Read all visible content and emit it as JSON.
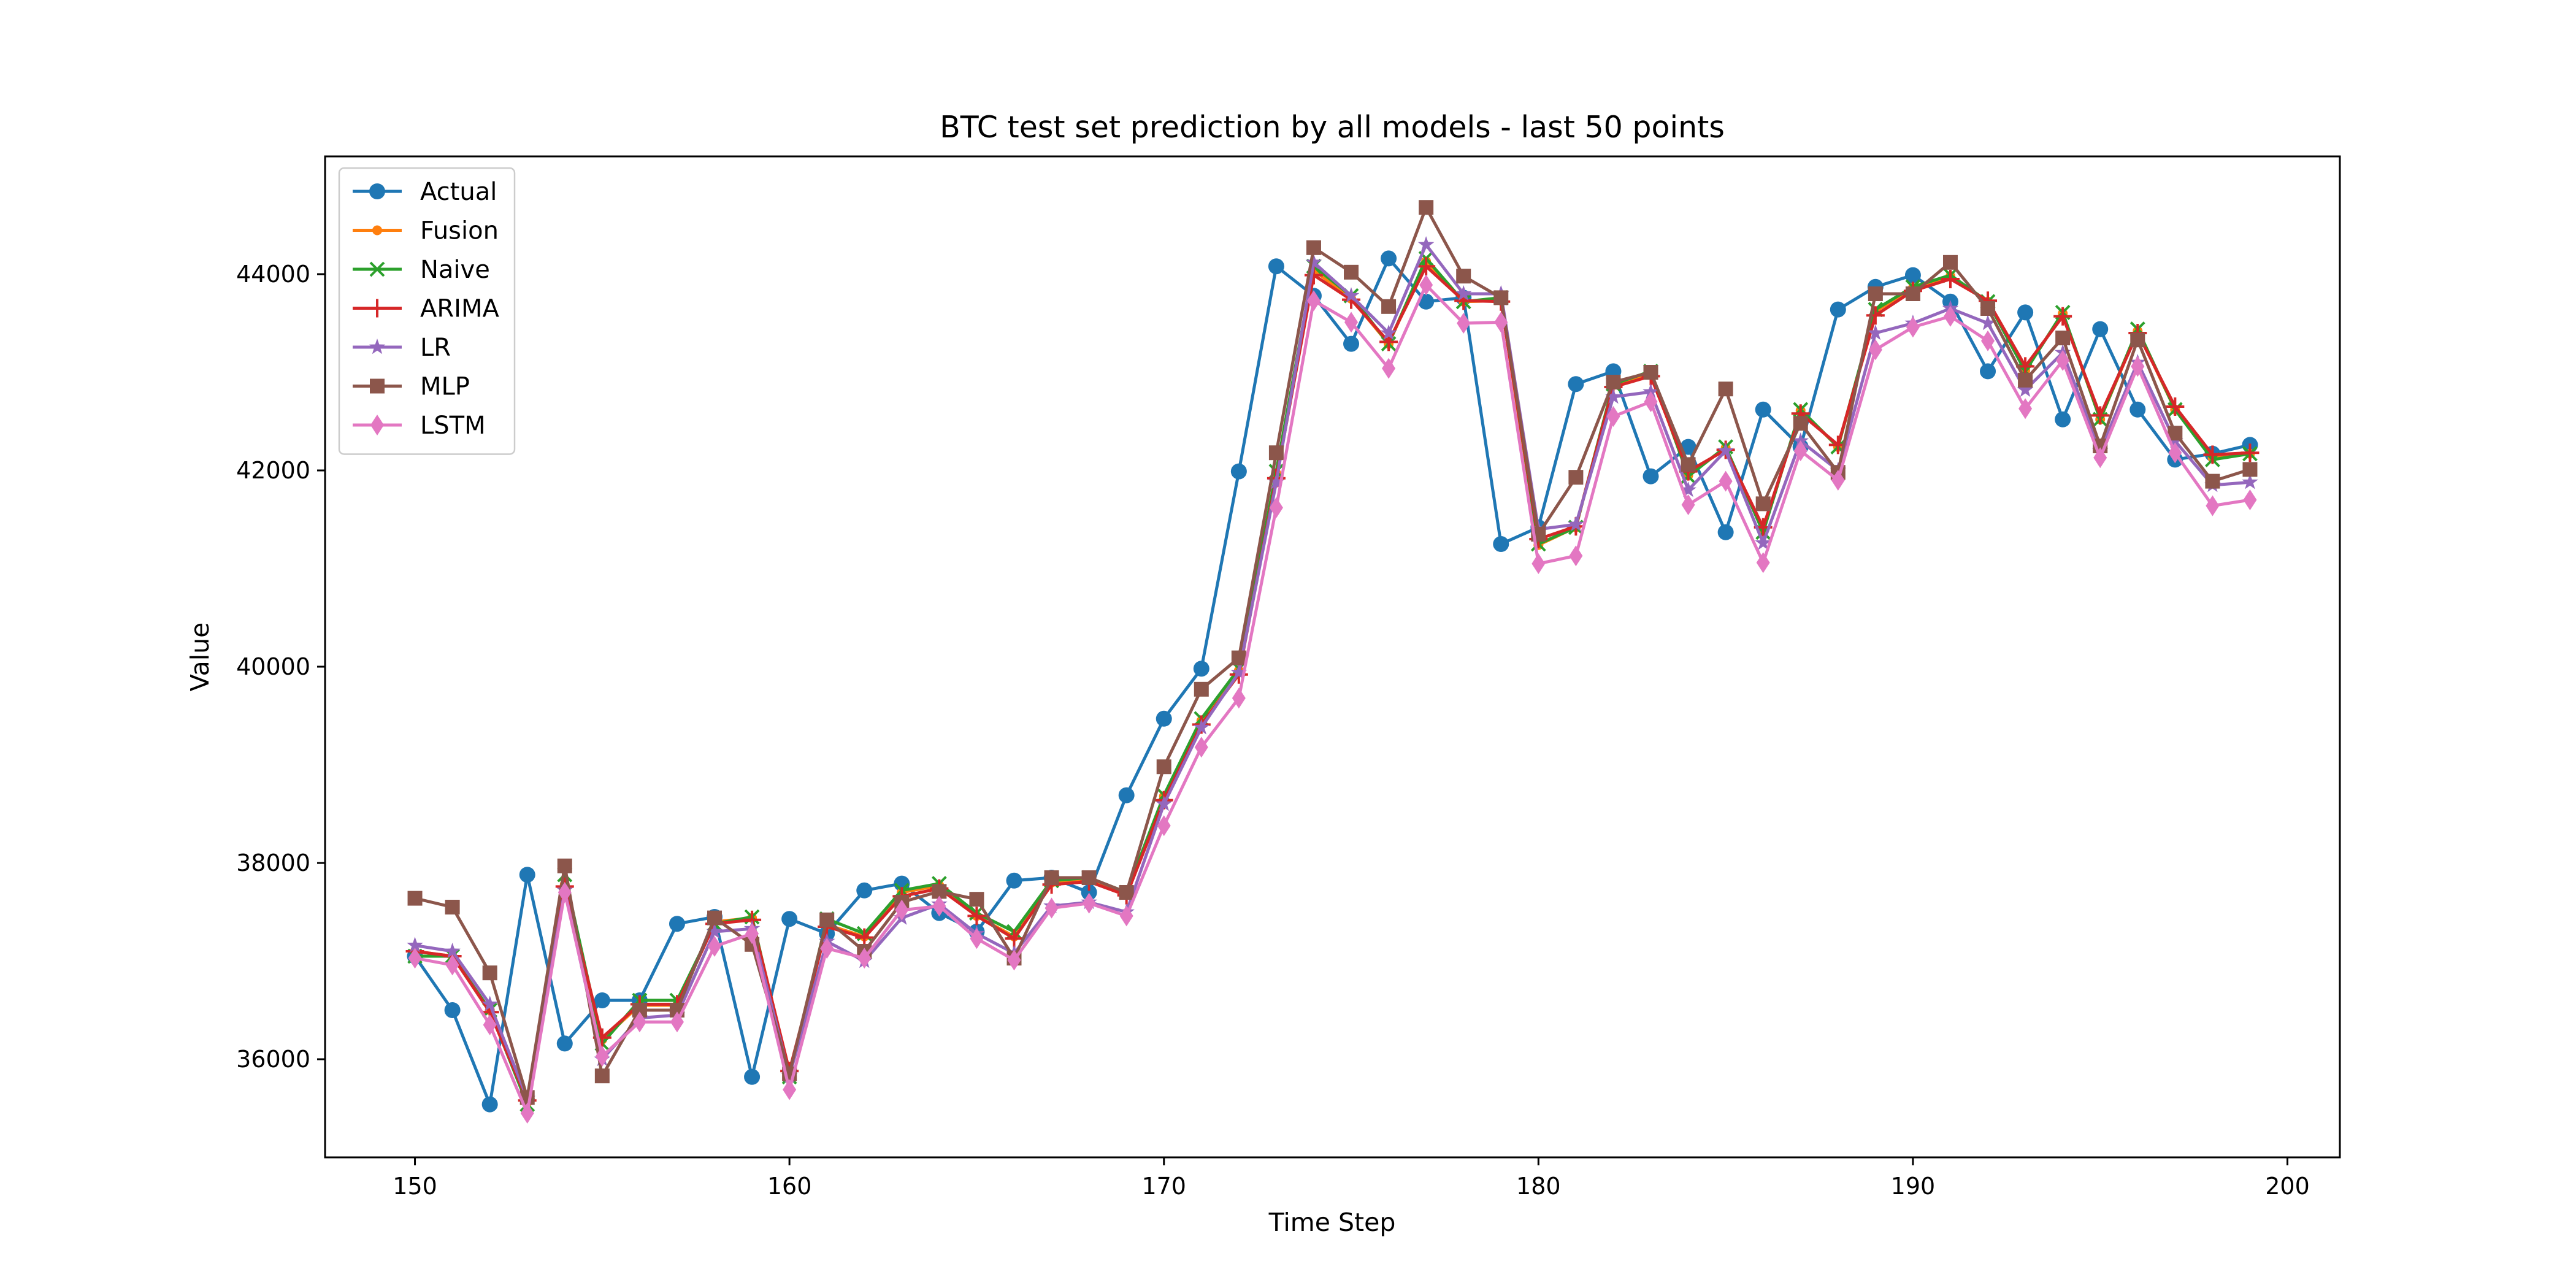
{
  "chart_data": {
    "type": "line",
    "title": "BTC test set prediction by all models - last 50 points",
    "xlabel": "Time Step",
    "ylabel": "Value",
    "xlim": [
      147.6,
      201.4
    ],
    "ylim": [
      35000,
      45200
    ],
    "xticks": [
      150,
      160,
      170,
      180,
      190,
      200
    ],
    "yticks": [
      36000,
      38000,
      40000,
      42000,
      44000
    ],
    "grid": false,
    "legend_position": "top-left",
    "x": [
      150,
      151,
      152,
      153,
      154,
      155,
      156,
      157,
      158,
      159,
      160,
      161,
      162,
      163,
      164,
      165,
      166,
      167,
      168,
      169,
      170,
      171,
      172,
      173,
      174,
      175,
      176,
      177,
      178,
      179,
      180,
      181,
      182,
      183,
      184,
      185,
      186,
      187,
      188,
      189,
      190,
      191,
      192,
      193,
      194,
      195,
      196,
      197,
      198,
      199
    ],
    "series": [
      {
        "name": "Actual",
        "color": "#1f77b4",
        "marker": "circle",
        "values": [
          37050,
          36500,
          35540,
          37880,
          36160,
          36600,
          36600,
          37380,
          37450,
          35820,
          37430,
          37280,
          37720,
          37790,
          37490,
          37300,
          37820,
          37850,
          37700,
          38690,
          39470,
          39980,
          41990,
          44080,
          43780,
          43290,
          44160,
          43720,
          43760,
          41250,
          41420,
          42880,
          43010,
          41940,
          42240,
          41370,
          42620,
          42240,
          43640,
          43870,
          43990,
          43720,
          43010,
          43610,
          42520,
          43440,
          42620,
          42110,
          42170,
          42260
        ]
      },
      {
        "name": "Fusion",
        "color": "#ff7f0e",
        "marker": "dot",
        "values": [
          37100,
          37050,
          36500,
          35560,
          37780,
          36200,
          36550,
          36550,
          37400,
          37440,
          35860,
          37370,
          37250,
          37700,
          37770,
          37460,
          37250,
          37800,
          37830,
          37680,
          38680,
          39450,
          39960,
          41970,
          44040,
          43750,
          43290,
          44130,
          43720,
          43730,
          41240,
          41420,
          42880,
          42990,
          41950,
          42230,
          41380,
          42610,
          42240,
          43620,
          43860,
          43980,
          43720,
          43020,
          43600,
          42520,
          43420,
          42620,
          42130,
          42170
        ]
      },
      {
        "name": "Naive",
        "color": "#2ca02c",
        "marker": "x",
        "values": [
          37050,
          37050,
          36500,
          35540,
          37880,
          36160,
          36600,
          36600,
          37380,
          37450,
          35820,
          37430,
          37280,
          37720,
          37790,
          37490,
          37300,
          37820,
          37850,
          37700,
          38690,
          39470,
          39980,
          41990,
          44080,
          43780,
          43290,
          44160,
          43720,
          43760,
          41250,
          41420,
          42880,
          43010,
          41940,
          42240,
          41370,
          42620,
          42240,
          43640,
          43870,
          43990,
          43720,
          43010,
          43610,
          42520,
          43440,
          42620,
          42110,
          42170
        ]
      },
      {
        "name": "ARIMA",
        "color": "#d62728",
        "marker": "plus",
        "values": [
          37100,
          37050,
          36480,
          35580,
          37760,
          36220,
          36560,
          36560,
          37380,
          37420,
          35880,
          37350,
          37240,
          37660,
          37740,
          37460,
          37230,
          37780,
          37810,
          37670,
          38640,
          39410,
          39920,
          41920,
          43990,
          43740,
          43310,
          44080,
          43730,
          43720,
          41300,
          41430,
          42850,
          42960,
          41990,
          42210,
          41420,
          42580,
          42260,
          43580,
          43830,
          43950,
          43730,
          43060,
          43570,
          42560,
          43400,
          42650,
          42160,
          42180
        ]
      },
      {
        "name": "LR",
        "color": "#9467bd",
        "marker": "star",
        "values": [
          37160,
          37100,
          36560,
          35600,
          37720,
          36000,
          36420,
          36450,
          37300,
          37330,
          35830,
          37200,
          37000,
          37440,
          37580,
          37280,
          37080,
          37560,
          37600,
          37500,
          38600,
          39380,
          39940,
          41880,
          44120,
          43780,
          43400,
          44300,
          43800,
          43800,
          41400,
          41450,
          42750,
          42800,
          41800,
          42200,
          41260,
          42300,
          42000,
          43400,
          43500,
          43650,
          43500,
          42820,
          43200,
          42200,
          43100,
          42300,
          41850,
          41880
        ]
      },
      {
        "name": "MLP",
        "color": "#8c564b",
        "marker": "square",
        "values": [
          37640,
          37550,
          36880,
          35610,
          37970,
          35830,
          36500,
          36500,
          37440,
          37170,
          35850,
          37420,
          37100,
          37600,
          37710,
          37630,
          37030,
          37850,
          37850,
          37700,
          38980,
          39770,
          40090,
          42180,
          44270,
          44020,
          43670,
          44680,
          43980,
          43760,
          41350,
          41930,
          42900,
          43000,
          42060,
          42830,
          41660,
          42480,
          41980,
          43800,
          43800,
          44120,
          43650,
          42920,
          43350,
          42250,
          43330,
          42380,
          41890,
          42010
        ]
      },
      {
        "name": "LSTM",
        "color": "#e377c2",
        "marker": "diamond",
        "values": [
          37030,
          36960,
          36350,
          35450,
          37700,
          36030,
          36380,
          36380,
          37150,
          37280,
          35690,
          37130,
          37030,
          37520,
          37560,
          37230,
          37010,
          37540,
          37590,
          37460,
          38380,
          39180,
          39680,
          41620,
          43730,
          43510,
          43040,
          43890,
          43500,
          43510,
          41050,
          41130,
          42550,
          42700,
          41650,
          41890,
          41060,
          42200,
          41900,
          43230,
          43460,
          43570,
          43320,
          42630,
          43120,
          42130,
          43060,
          42180,
          41640,
          41700
        ]
      }
    ]
  }
}
